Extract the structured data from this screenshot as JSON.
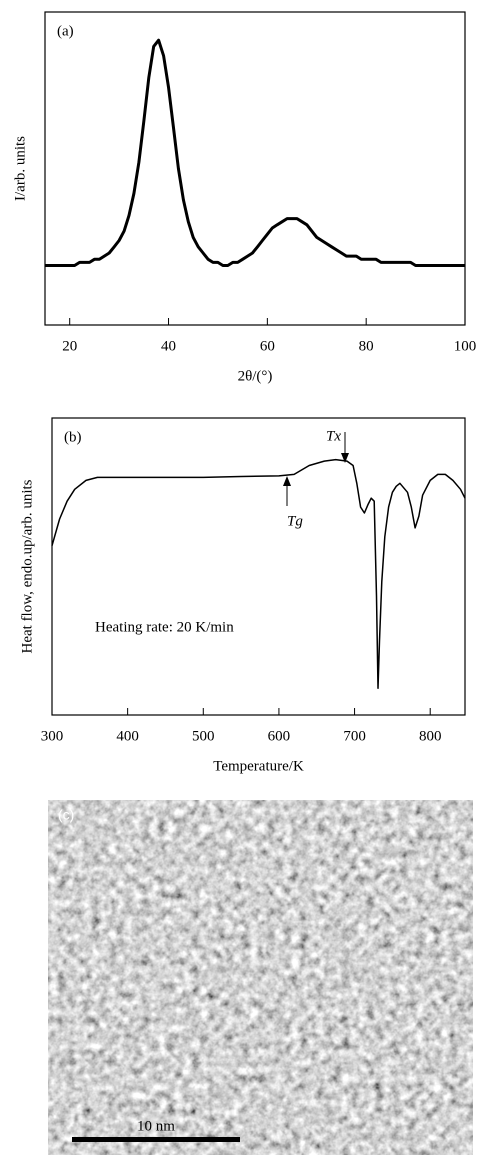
{
  "chart_data": [
    {
      "type": "line",
      "label": "(a)",
      "xlabel": "2θ/(°)",
      "ylabel": "I/arb. units",
      "color": "#000000",
      "x": [
        15,
        16,
        17,
        18,
        19,
        20,
        21,
        22,
        23,
        24,
        25,
        26,
        27,
        28,
        29,
        30,
        31,
        32,
        33,
        34,
        35,
        36,
        37,
        38,
        39,
        40,
        41,
        42,
        43,
        44,
        45,
        46,
        47,
        48,
        49,
        50,
        51,
        52,
        53,
        54,
        55,
        56,
        57,
        58,
        59,
        60,
        61,
        62,
        63,
        64,
        65,
        66,
        67,
        68,
        69,
        70,
        71,
        72,
        73,
        74,
        75,
        76,
        77,
        78,
        79,
        80,
        81,
        82,
        83,
        84,
        85,
        86,
        87,
        88,
        89,
        90,
        91,
        92,
        93,
        94,
        95,
        96,
        97,
        98,
        99,
        100
      ],
      "values": [
        19,
        19,
        19,
        19,
        19,
        19,
        19,
        20,
        20,
        20,
        21,
        21,
        22,
        23,
        25,
        27,
        30,
        35,
        42,
        52,
        65,
        79,
        89,
        91,
        86,
        76,
        63,
        50,
        40,
        33,
        28,
        25,
        23,
        21,
        20,
        20,
        19,
        19,
        20,
        20,
        21,
        22,
        23,
        25,
        27,
        29,
        31,
        32,
        33,
        34,
        34,
        34,
        33,
        32,
        30,
        28,
        27,
        26,
        25,
        24,
        23,
        22,
        22,
        22,
        21,
        21,
        21,
        21,
        20,
        20,
        20,
        20,
        20,
        20,
        20,
        19,
        19,
        19,
        19,
        19,
        19,
        19,
        19,
        19,
        19,
        19
      ],
      "xlim": [
        15,
        100
      ],
      "ylim": [
        0,
        100
      ],
      "xticks": [
        20,
        40,
        60,
        80,
        100
      ]
    },
    {
      "type": "line",
      "label": "(b)",
      "xlabel": "Temperature/K",
      "ylabel": "Heat flow, endo.up/arb. units",
      "color": "#000000",
      "annotations": [
        "Tx",
        "Tg",
        "Heating rate:  20 K/min"
      ],
      "x": [
        300,
        310,
        320,
        330,
        345,
        360,
        400,
        450,
        500,
        550,
        600,
        620,
        640,
        660,
        675,
        690,
        698,
        703,
        708,
        713,
        718,
        722,
        726,
        729,
        731,
        733,
        736,
        740,
        745,
        750,
        755,
        760,
        770,
        775,
        780,
        785,
        790,
        800,
        810,
        820,
        830,
        840,
        846
      ],
      "values": [
        57,
        66,
        72,
        76,
        79,
        80,
        80,
        80,
        80,
        80.3,
        80.5,
        81,
        84,
        85.5,
        86,
        85.5,
        84,
        78,
        70,
        68,
        71,
        73,
        72,
        40,
        9,
        25,
        45,
        60,
        70,
        75,
        77,
        78,
        75,
        70,
        63,
        67,
        74,
        79,
        81,
        81,
        79,
        76,
        73
      ],
      "xlim": [
        300,
        846
      ],
      "ylim": [
        0,
        100
      ],
      "xticks": [
        300,
        400,
        500,
        600,
        700,
        800
      ]
    }
  ],
  "image": {
    "label": "(c)",
    "scale_bar": "10 nm"
  }
}
